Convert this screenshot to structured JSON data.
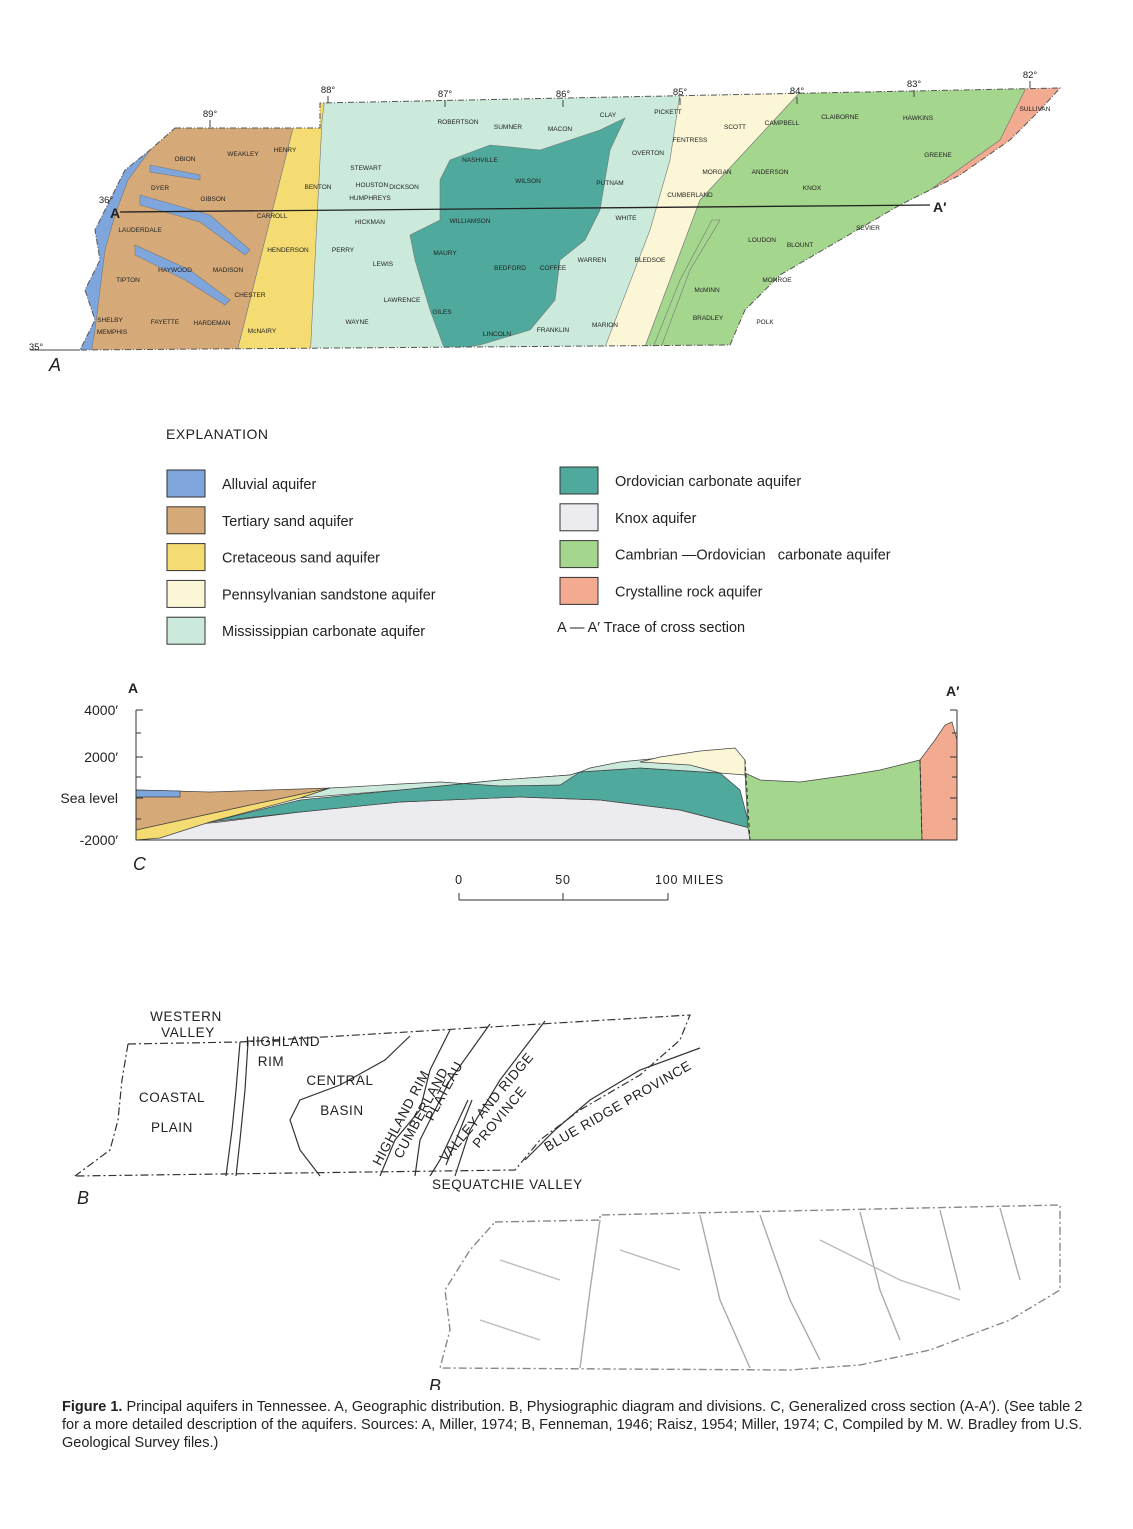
{
  "map_a": {
    "panel_label": "A",
    "longitudes": [
      "89°",
      "88°",
      "87°",
      "86°",
      "85°",
      "84°",
      "83°",
      "82°"
    ],
    "latitudes": [
      "36°",
      "35°"
    ],
    "section_start": "A",
    "section_end": "A′",
    "places": [
      "OBION",
      "WEAKLEY",
      "HENRY",
      "DYER",
      "GIBSON",
      "CARROLL",
      "BENTON",
      "STEWART",
      "HOUSTON",
      "HUMPHREYS",
      "DICKSON",
      "ROBERTSON",
      "SUMNER",
      "MACON",
      "CLAY",
      "PICKETT",
      "SCOTT",
      "CAMPBELL",
      "CLAIBORNE",
      "HAWKINS",
      "SULLIVAN",
      "NASHVILLE",
      "WILSON",
      "PUTNAM",
      "OVERTON",
      "FENTRESS",
      "MORGAN",
      "ANDERSON",
      "KNOX",
      "GREENE",
      "CUMBERLAND",
      "WHITE",
      "WILLIAMSON",
      "HICKMAN",
      "HENDERSON",
      "MADISON",
      "HAYWOOD",
      "TIPTON",
      "LAUDERDALE",
      "SHELBY",
      "MEMPHIS",
      "FAYETTE",
      "HARDEMAN",
      "McNAIRY",
      "CHESTER",
      "PERRY",
      "LEWIS",
      "MAURY",
      "BEDFORD",
      "COFFEE",
      "WARREN",
      "LAWRENCE",
      "GILES",
      "LINCOLN",
      "FRANKLIN",
      "MARION",
      "BLEDSOE",
      "LOUDON",
      "BLOUNT",
      "SEVIER",
      "MONROE",
      "McMINN",
      "BRADLEY",
      "POLK",
      "WAYNE"
    ]
  },
  "explanation": {
    "title": "EXPLANATION",
    "items": [
      {
        "label": "Alluvial aquifer",
        "color": "#7ea6dc"
      },
      {
        "label": "Tertiary sand aquifer",
        "color": "#d6aa78"
      },
      {
        "label": "Cretaceous sand aquifer",
        "color": "#f4dc72"
      },
      {
        "label": "Pennsylvanian sandstone aquifer",
        "color": "#fbf6d6"
      },
      {
        "label": "Mississippian carbonate aquifer",
        "color": "#cbeadb"
      },
      {
        "label": "Ordovician carbonate aquifer",
        "color": "#4fa99c"
      },
      {
        "label": "Knox aquifer",
        "color": "#ebebf0"
      },
      {
        "label": "Cambrian —Ordovician   carbonate aquifer",
        "color": "#a4d68e"
      },
      {
        "label": "Crystalline rock aquifer",
        "color": "#f2aa90"
      }
    ],
    "trace_label": "A — A′ Trace of cross section"
  },
  "cross_section": {
    "panel_label": "C",
    "start": "A",
    "end": "A′",
    "elevation_labels": [
      "4000′",
      "2000′",
      "Sea level",
      "-2000′"
    ],
    "scale_labels": [
      "0",
      "50",
      "100 MILES"
    ]
  },
  "physiographic": {
    "panel_label": "B",
    "labels": [
      "WESTERN",
      "VALLEY",
      "HIGHLAND",
      "RIM",
      "CENTRAL",
      "BASIN",
      "COASTAL",
      "PLAIN",
      "HIGHLAND RIM",
      "CUMBERLAND",
      "PLATEAU",
      "VALLEY AND RIDGE",
      "PROVINCE",
      "BLUE RIDGE PROVINCE",
      "SEQUATCHIE VALLEY"
    ]
  },
  "relief": {
    "panel_label": "B"
  },
  "caption": {
    "label": "Figure 1.",
    "text": "Principal aquifers in Tennessee. A, Geographic distribution. B, Physiographic diagram and divisions. C, Generalized cross section (A-A′). (See table 2 for a more detailed description of the aquifers. Sources: A, Miller, 1974; B, Fenneman, 1946; Raisz, 1954; Miller, 1974; C, Compiled by M. W. Bradley from U.S. Geological Survey files.)"
  }
}
